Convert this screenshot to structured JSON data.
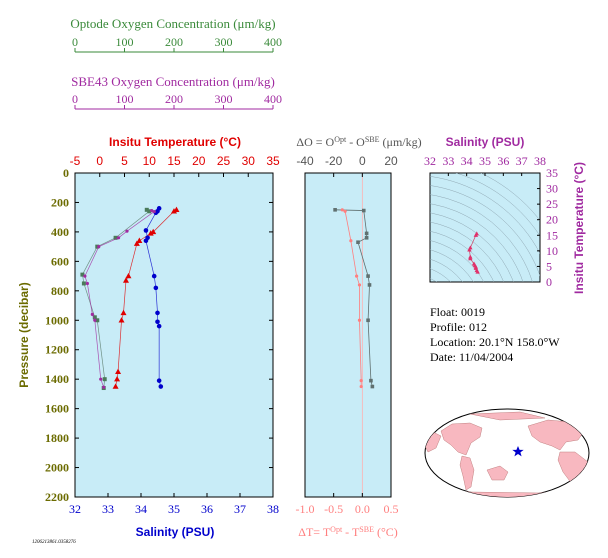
{
  "colors": {
    "panel_bg": "#c8ecf7",
    "optode": "#3a8a3a",
    "sbe": "#a02aa0",
    "temp": "#e00000",
    "salinity": "#0000cc",
    "delta_o_line": "#607070",
    "delta_t": "#ff7f7f",
    "pressure_axis": "#6b6b00",
    "map_land": "#f8b8c0",
    "ts_contour": "#8fa7b3"
  },
  "labels": {
    "optode_title": "Optode Oxygen Concentration (μm/kg)",
    "sbe_title": "SBE43 Oxygen Concentration (μm/kg)",
    "temp_title": "Insitu Temperature (°C)",
    "salinity_title": "Salinity (PSU)",
    "pressure_label": "Pressure (decibar)",
    "delta_o_title": "ΔO = O",
    "delta_o_sup1": "Opt",
    "delta_o_mid": " - O",
    "delta_o_sup2": "SBE",
    "delta_o_unit": " (μm/kg)",
    "delta_t_title": "ΔT= T",
    "delta_t_sup1": "Opt",
    "delta_t_mid": " - T",
    "delta_t_sup2": "SBE",
    "delta_t_unit": " (°C)",
    "ts_salinity_title": "Salinity (PSU)",
    "ts_temp_title": "Insitu Temperature (°C)",
    "footer_id": "1206213861.0358276"
  },
  "info": {
    "float": "Float:  0019",
    "profile": "Profile:  012",
    "location": "Location:  20.1°N  158.0°W",
    "date": "Date:  11/04/2004"
  },
  "chart_data": [
    {
      "type": "scatter",
      "id": "main_profile",
      "x_axes": {
        "optode_oxygen": {
          "ticks": [
            0,
            100,
            200,
            300,
            400
          ],
          "range": [
            0,
            400
          ]
        },
        "sbe43_oxygen": {
          "ticks": [
            0,
            100,
            200,
            300,
            400
          ],
          "range": [
            0,
            400
          ]
        },
        "temperature": {
          "ticks": [
            -5,
            0,
            5,
            10,
            15,
            20,
            25,
            30,
            35
          ],
          "range": [
            -5,
            35
          ]
        },
        "salinity": {
          "ticks": [
            32,
            33,
            34,
            35,
            36,
            37,
            38
          ],
          "range": [
            32,
            38
          ]
        }
      },
      "y_axis": {
        "label": "Pressure (decibar)",
        "ticks": [
          0,
          200,
          400,
          600,
          800,
          1000,
          1200,
          1400,
          1600,
          1800,
          2000,
          2200
        ],
        "range": [
          0,
          2200
        ],
        "inverted": true
      },
      "series": [
        {
          "name": "Insitu Temperature (°C)",
          "axis": "temperature",
          "marker": "triangle",
          "points": [
            [
              15.5,
              250
            ],
            [
              15.0,
              260
            ],
            [
              10.8,
              400
            ],
            [
              10.3,
              410
            ],
            [
              8.0,
              460
            ],
            [
              7.5,
              480
            ],
            [
              5.8,
              700
            ],
            [
              5.3,
              730
            ],
            [
              4.8,
              950
            ],
            [
              4.4,
              1000
            ],
            [
              3.7,
              1350
            ],
            [
              3.5,
              1400
            ],
            [
              3.2,
              1450
            ]
          ]
        },
        {
          "name": "Salinity (PSU)",
          "axis": "salinity",
          "marker": "circle",
          "points": [
            [
              34.55,
              240
            ],
            [
              34.5,
              260
            ],
            [
              34.45,
              270
            ],
            [
              34.15,
              390
            ],
            [
              34.2,
              440
            ],
            [
              34.15,
              460
            ],
            [
              34.4,
              700
            ],
            [
              34.45,
              780
            ],
            [
              34.5,
              950
            ],
            [
              34.5,
              1010
            ],
            [
              34.55,
              1040
            ],
            [
              34.55,
              1410
            ],
            [
              34.6,
              1450
            ]
          ]
        },
        {
          "name": "Optode Oxygen",
          "axis": "optode_oxygen",
          "marker": "square",
          "points": [
            [
              145,
              250
            ],
            [
              150,
              260
            ],
            [
              82,
              440
            ],
            [
              45,
              500
            ],
            [
              15,
              690
            ],
            [
              18,
              750
            ],
            [
              40,
              980
            ],
            [
              45,
              1000
            ],
            [
              60,
              1400
            ],
            [
              58,
              1460
            ]
          ]
        },
        {
          "name": "SBE43 Oxygen",
          "axis": "sbe43_oxygen",
          "marker": "dot",
          "points": [
            [
              155,
              255
            ],
            [
              160,
              262
            ],
            [
              105,
              395
            ],
            [
              88,
              440
            ],
            [
              48,
              500
            ],
            [
              20,
              700
            ],
            [
              25,
              750
            ],
            [
              35,
              960
            ],
            [
              40,
              1000
            ],
            [
              52,
              1400
            ],
            [
              58,
              1455
            ]
          ]
        }
      ]
    },
    {
      "type": "line",
      "id": "difference_profile",
      "x_axes": {
        "delta_o": {
          "ticks": [
            -40,
            -20,
            0,
            20
          ],
          "range": [
            -40,
            20
          ]
        },
        "delta_t": {
          "ticks": [
            -1.0,
            -0.5,
            0.0,
            0.5
          ],
          "range": [
            -1.0,
            0.5
          ]
        }
      },
      "series": [
        {
          "name": "ΔO",
          "axis": "delta_o",
          "points": [
            [
              -19,
              250
            ],
            [
              1,
              255
            ],
            [
              3,
              410
            ],
            [
              3,
              440
            ],
            [
              -3,
              470
            ],
            [
              4,
              700
            ],
            [
              5,
              760
            ],
            [
              4,
              1000
            ],
            [
              6,
              1410
            ],
            [
              7,
              1450
            ]
          ]
        },
        {
          "name": "ΔT",
          "axis": "delta_t",
          "points": [
            [
              -0.35,
              250
            ],
            [
              -0.3,
              260
            ],
            [
              -0.2,
              460
            ],
            [
              -0.1,
              700
            ],
            [
              -0.05,
              760
            ],
            [
              -0.05,
              1000
            ],
            [
              -0.02,
              1410
            ],
            [
              -0.02,
              1450
            ]
          ]
        }
      ]
    },
    {
      "type": "scatter",
      "id": "ts_diagram",
      "xlabel": "Salinity (PSU)",
      "ylabel": "Insitu Temperature (°C)",
      "x_ticks": [
        32,
        33,
        34,
        35,
        36,
        37,
        38
      ],
      "y_ticks": [
        0,
        5,
        10,
        15,
        20,
        25,
        30,
        35
      ],
      "xlim": [
        32,
        38
      ],
      "ylim": [
        0,
        35
      ],
      "points": [
        [
          34.55,
          15.5
        ],
        [
          34.5,
          15.0
        ],
        [
          34.2,
          11.0
        ],
        [
          34.15,
          10.3
        ],
        [
          34.2,
          8.0
        ],
        [
          34.2,
          7.5
        ],
        [
          34.4,
          5.8
        ],
        [
          34.45,
          5.3
        ],
        [
          34.5,
          4.8
        ],
        [
          34.5,
          4.4
        ],
        [
          34.55,
          3.7
        ],
        [
          34.6,
          3.2
        ]
      ]
    }
  ]
}
